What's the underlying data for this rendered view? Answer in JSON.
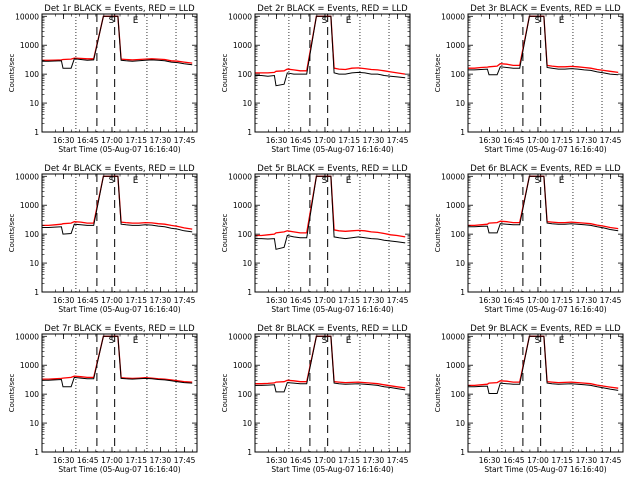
{
  "chart_data": [
    {
      "type": "line",
      "title": "Det 1r BLACK = Events, RED = LLD",
      "xlabel": "Start Time (05-Aug-07 16:16:40)",
      "ylabel": "Counts/sec",
      "black": [
        280,
        280,
        285,
        290,
        160,
        160,
        340,
        320,
        300,
        310,
        10000,
        10000,
        10000,
        300,
        290,
        280,
        290,
        300,
        310,
        300,
        290,
        260,
        250,
        230,
        210
      ],
      "red": [
        300,
        300,
        305,
        310,
        320,
        330,
        360,
        350,
        340,
        340,
        10000,
        10000,
        10000,
        330,
        320,
        310,
        320,
        330,
        340,
        330,
        320,
        290,
        280,
        260,
        240
      ]
    },
    {
      "type": "line",
      "title": "Det 2r BLACK = Events, RED = LLD",
      "xlabel": "Start Time (05-Aug-07 16:16:40)",
      "ylabel": "Counts/sec",
      "black": [
        90,
        90,
        85,
        90,
        40,
        45,
        110,
        100,
        100,
        100,
        10000,
        10000,
        10000,
        110,
        100,
        100,
        110,
        115,
        110,
        100,
        100,
        90,
        85,
        80,
        75
      ],
      "red": [
        110,
        110,
        110,
        115,
        125,
        130,
        150,
        140,
        130,
        130,
        10000,
        10000,
        10000,
        160,
        150,
        145,
        160,
        165,
        155,
        145,
        140,
        130,
        120,
        110,
        100
      ]
    },
    {
      "type": "line",
      "title": "Det 3r BLACK = Events, RED = LLD",
      "xlabel": "Start Time (05-Aug-07 16:16:40)",
      "ylabel": "Counts/sec",
      "black": [
        140,
        140,
        145,
        150,
        95,
        95,
        180,
        170,
        160,
        160,
        10000,
        10000,
        10000,
        170,
        160,
        150,
        150,
        155,
        150,
        140,
        135,
        120,
        110,
        100,
        95
      ],
      "red": [
        160,
        160,
        170,
        175,
        180,
        190,
        230,
        220,
        200,
        200,
        10000,
        10000,
        10000,
        200,
        190,
        180,
        180,
        185,
        180,
        170,
        160,
        145,
        135,
        125,
        115
      ]
    },
    {
      "type": "line",
      "title": "Det 4r BLACK = Events, RED = LLD",
      "xlabel": "Start Time (05-Aug-07 16:16:40)",
      "ylabel": "Counts/sec",
      "black": [
        170,
        170,
        175,
        180,
        100,
        105,
        220,
        210,
        200,
        200,
        10000,
        10000,
        10000,
        220,
        210,
        200,
        200,
        210,
        205,
        190,
        180,
        160,
        150,
        130,
        120
      ],
      "red": [
        200,
        200,
        210,
        220,
        230,
        240,
        270,
        260,
        240,
        240,
        10000,
        10000,
        10000,
        260,
        250,
        240,
        240,
        250,
        245,
        230,
        220,
        200,
        185,
        165,
        150
      ]
    },
    {
      "type": "line",
      "title": "Det 5r BLACK = Events, RED = LLD",
      "xlabel": "Start Time (05-Aug-07 16:16:40)",
      "ylabel": "Counts/sec",
      "black": [
        70,
        70,
        68,
        70,
        30,
        35,
        90,
        80,
        75,
        75,
        10000,
        10000,
        10000,
        80,
        75,
        70,
        75,
        80,
        75,
        70,
        68,
        62,
        58,
        55,
        50
      ],
      "red": [
        90,
        90,
        95,
        100,
        110,
        120,
        130,
        120,
        110,
        110,
        10000,
        10000,
        10000,
        140,
        130,
        125,
        130,
        135,
        130,
        120,
        115,
        105,
        95,
        90,
        80
      ]
    },
    {
      "type": "line",
      "title": "Det 6r BLACK = Events, RED = LLD",
      "xlabel": "Start Time (05-Aug-07 16:16:40)",
      "ylabel": "Counts/sec",
      "black": [
        180,
        180,
        185,
        190,
        110,
        110,
        230,
        220,
        210,
        210,
        10000,
        10000,
        10000,
        240,
        230,
        220,
        220,
        230,
        220,
        210,
        200,
        180,
        165,
        145,
        130
      ],
      "red": [
        200,
        200,
        210,
        220,
        240,
        250,
        280,
        270,
        250,
        250,
        10000,
        10000,
        10000,
        270,
        260,
        250,
        250,
        260,
        250,
        240,
        230,
        205,
        190,
        170,
        155
      ]
    },
    {
      "type": "line",
      "title": "Det 7r BLACK = Events, RED = LLD",
      "xlabel": "Start Time (05-Aug-07 16:16:40)",
      "ylabel": "Counts/sec",
      "black": [
        300,
        300,
        310,
        320,
        180,
        180,
        380,
        360,
        340,
        340,
        10000,
        10000,
        10000,
        350,
        340,
        330,
        340,
        350,
        340,
        320,
        310,
        290,
        270,
        250,
        240
      ],
      "red": [
        330,
        330,
        340,
        350,
        360,
        380,
        420,
        400,
        380,
        380,
        10000,
        10000,
        10000,
        370,
        360,
        350,
        360,
        370,
        360,
        340,
        330,
        310,
        290,
        270,
        260
      ]
    },
    {
      "type": "line",
      "title": "Det 8r BLACK = Events, RED = LLD",
      "xlabel": "Start Time (05-Aug-07 16:16:40)",
      "ylabel": "Counts/sec",
      "black": [
        200,
        200,
        205,
        210,
        120,
        120,
        250,
        240,
        230,
        230,
        10000,
        10000,
        10000,
        240,
        230,
        220,
        225,
        230,
        220,
        210,
        200,
        180,
        170,
        155,
        140
      ],
      "red": [
        230,
        230,
        235,
        245,
        260,
        270,
        300,
        290,
        270,
        270,
        10000,
        10000,
        10000,
        270,
        260,
        250,
        255,
        260,
        250,
        240,
        230,
        210,
        195,
        180,
        165
      ]
    },
    {
      "type": "line",
      "title": "Det 9r BLACK = Events, RED = LLD",
      "xlabel": "Start Time (05-Aug-07 16:16:40)",
      "ylabel": "Counts/sec",
      "black": [
        180,
        180,
        185,
        190,
        105,
        105,
        240,
        230,
        220,
        220,
        10000,
        10000,
        10000,
        240,
        230,
        220,
        225,
        230,
        220,
        210,
        200,
        180,
        165,
        150,
        135
      ],
      "red": [
        200,
        200,
        210,
        220,
        240,
        250,
        290,
        280,
        260,
        260,
        10000,
        10000,
        10000,
        270,
        260,
        250,
        255,
        260,
        250,
        240,
        230,
        205,
        190,
        175,
        160
      ]
    }
  ],
  "shared": {
    "x_ticks": [
      "16:30",
      "16:45",
      "17:00",
      "17:15",
      "17:30",
      "17:45"
    ],
    "x_tick_minutes": [
      13.33,
      28.33,
      43.33,
      58.33,
      73.33,
      88.33
    ],
    "x_range_minutes": [
      0,
      96
    ],
    "y_ticks": [
      "1",
      "10",
      "100",
      "1000",
      "10000"
    ],
    "y_range": [
      1,
      12000
    ],
    "y_scale": "log",
    "point_minutes": [
      0,
      4,
      8,
      12,
      13,
      18,
      20,
      24,
      28,
      32,
      38,
      46,
      47,
      49,
      52,
      56,
      60,
      64,
      68,
      72,
      76,
      80,
      84,
      88,
      93
    ],
    "dotted_lines_minutes": [
      21,
      65,
      83
    ],
    "dashed_lines_minutes": [
      34,
      45
    ],
    "markers": [
      {
        "label": "S",
        "minute": 43
      },
      {
        "label": "E",
        "minute": 58
      }
    ],
    "colors": {
      "black": "#000000",
      "red": "#ff0000"
    },
    "grid": false
  }
}
